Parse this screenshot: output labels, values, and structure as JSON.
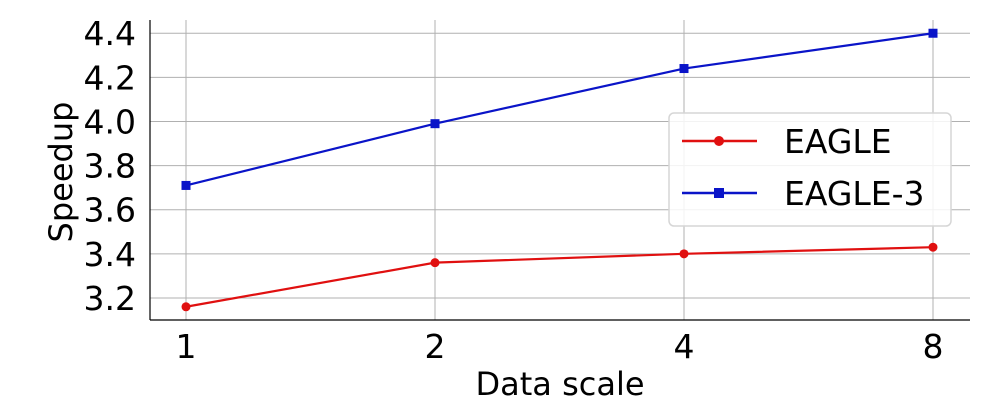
{
  "chart_data": {
    "type": "line",
    "x": [
      1,
      2,
      4,
      8
    ],
    "x_scale": "log2",
    "xlabel": "Data scale",
    "ylabel": "Speedup",
    "ylim": [
      3.1,
      4.46
    ],
    "yticks": [
      "3.2",
      "3.4",
      "3.6",
      "3.8",
      "4.0",
      "4.2",
      "4.4"
    ],
    "xticks": [
      "1",
      "2",
      "4",
      "8"
    ],
    "grid": true,
    "legend_position": "center-right",
    "series": [
      {
        "name": "EAGLE",
        "values": [
          3.16,
          3.36,
          3.4,
          3.43
        ],
        "color": "#e01010",
        "marker": "circle"
      },
      {
        "name": "EAGLE-3",
        "values": [
          3.71,
          3.99,
          4.24,
          4.4
        ],
        "color": "#0a14c8",
        "marker": "square"
      }
    ]
  }
}
